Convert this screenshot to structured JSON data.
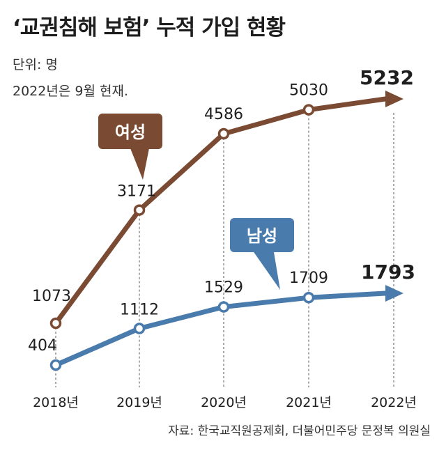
{
  "header": {
    "title": "‘교권침해 보험’ 누적 가입 현황",
    "unit": "단위: 명",
    "note": "2022년은 9월 현재."
  },
  "source": "자료: 한국교직원공제회, 더불어민주당 문정복 의원실",
  "colors": {
    "female": "#7a4a33",
    "male": "#4a7bad",
    "female_label_bg": "#7a4a33",
    "male_label_bg": "#4a7bad"
  },
  "chart_data": {
    "type": "line",
    "categories": [
      "2018년",
      "2019년",
      "2020년",
      "2021년",
      "2022년"
    ],
    "series": [
      {
        "name": "여성",
        "values": [
          1073,
          3171,
          4586,
          5030,
          5232
        ]
      },
      {
        "name": "남성",
        "values": [
          404,
          1112,
          1529,
          1709,
          1793
        ]
      }
    ],
    "title": "‘교권침해 보험’ 누적 가입 현황",
    "xlabel": "",
    "ylabel": "",
    "grid": false,
    "legend": "inline callouts"
  }
}
